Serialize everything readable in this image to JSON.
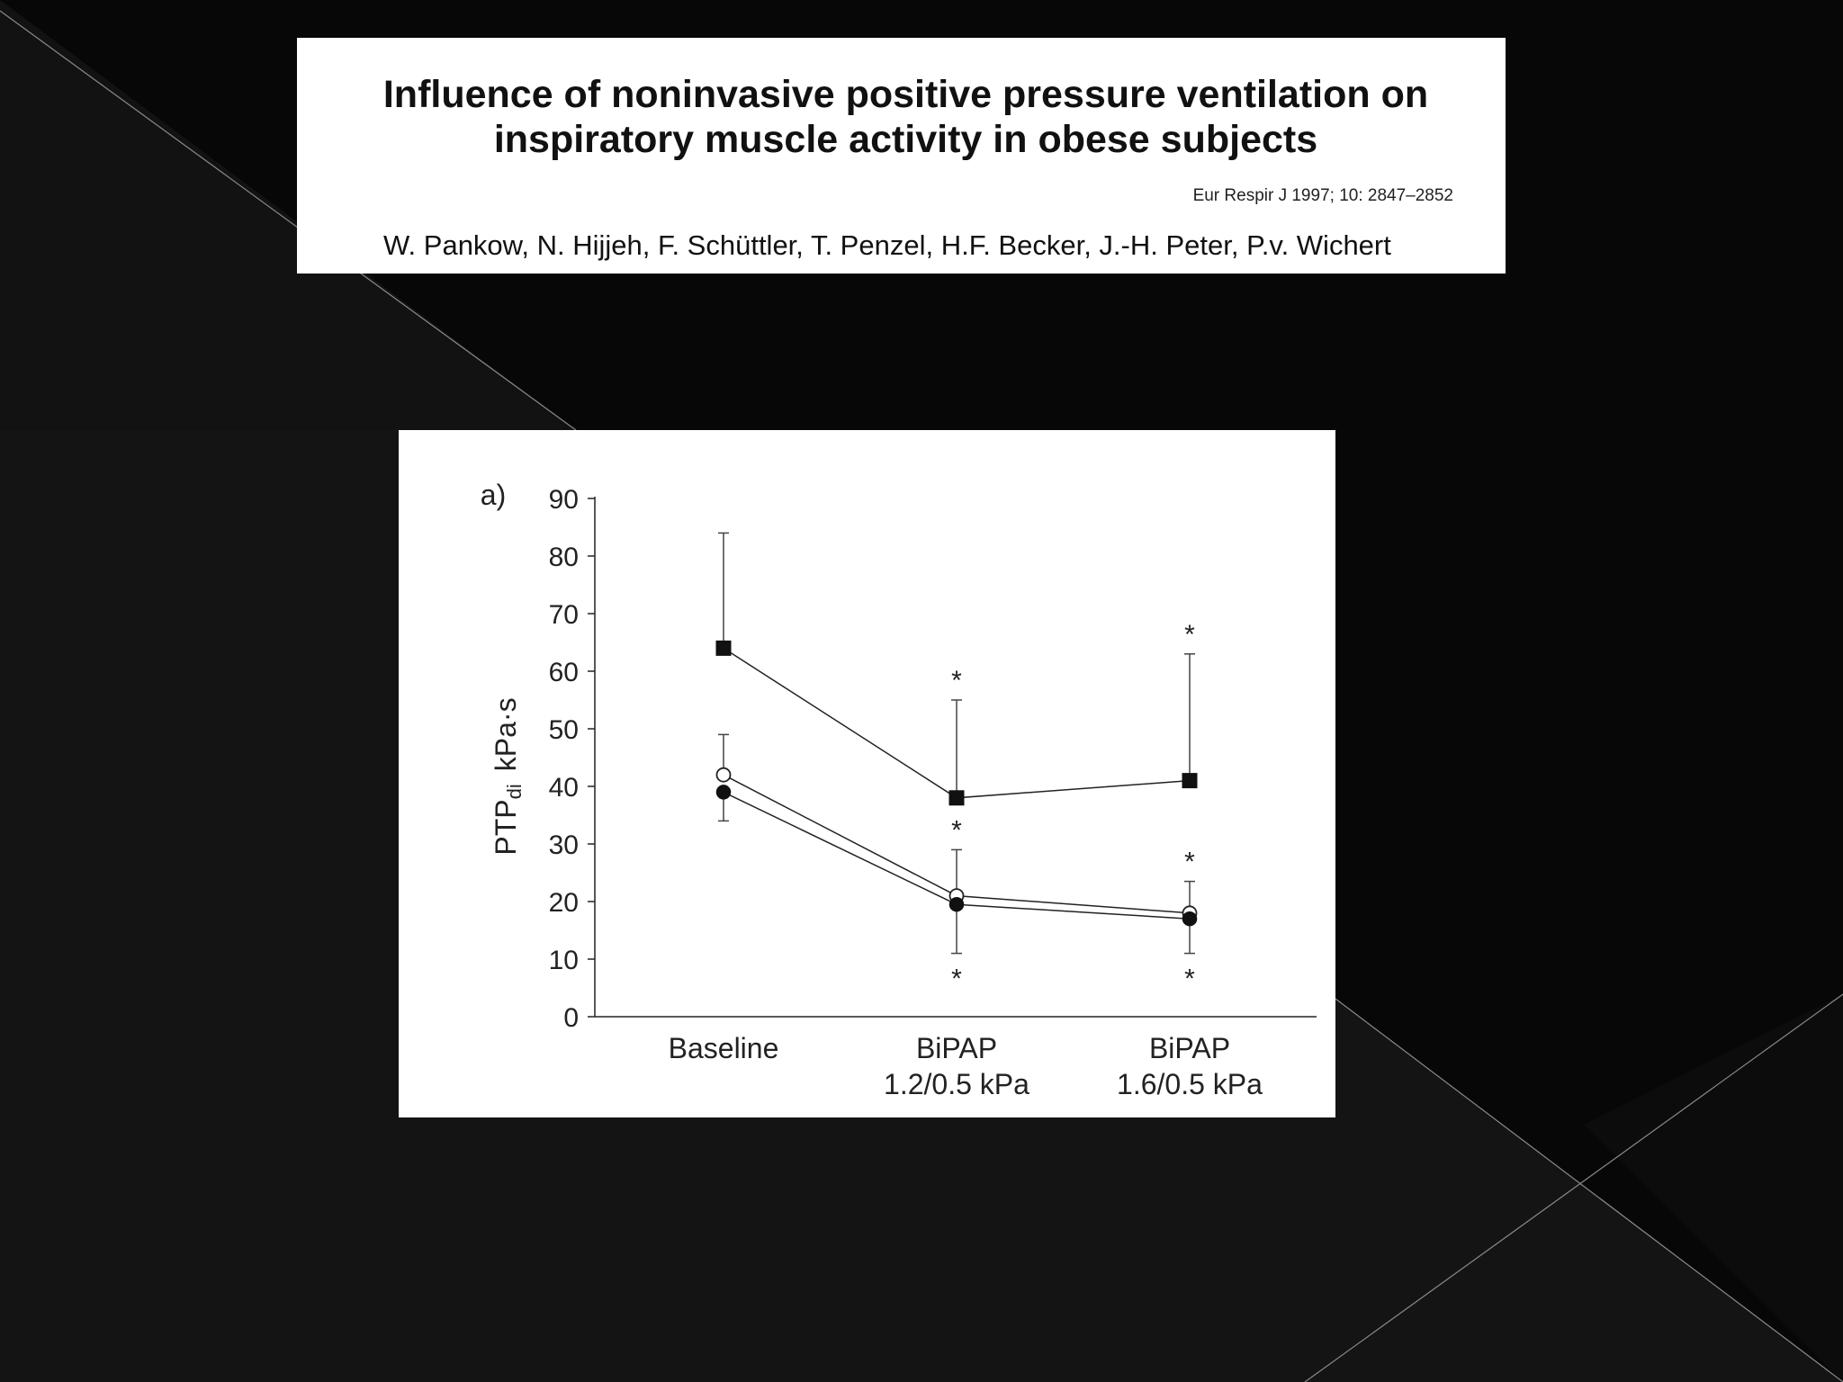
{
  "slide": {
    "background_color": "#070707",
    "line_color": "#8a8a8a"
  },
  "header": {
    "title": "Influence of noninvasive positive pressure ventilation on\ninspiratory muscle activity in obese subjects",
    "citation": "Eur Respir J 1997; 10: 2847–2852",
    "authors": "W. Pankow, N. Hijjeh, F. Schüttler, T. Penzel, H.F. Becker, J.-H. Peter, P.v. Wichert"
  },
  "chart_data": {
    "type": "line",
    "panel_label": "a)",
    "ylabel": "PTP",
    "ylabel_sub": "di",
    "ylabel_unit": "kPa·s",
    "ylim": [
      0,
      90
    ],
    "yticks": [
      0,
      10,
      20,
      30,
      40,
      50,
      60,
      70,
      80,
      90
    ],
    "categories": [
      "Baseline",
      "BiPAP\n1.2/0.5 kPa",
      "BiPAP\n1.6/0.5 kPa"
    ],
    "series": [
      {
        "marker": "filled-square",
        "values": [
          64,
          38,
          41
        ],
        "error_upper": [
          84,
          55,
          63
        ],
        "error_lower": [
          null,
          null,
          null
        ],
        "significance": [
          null,
          "*",
          "*"
        ]
      },
      {
        "marker": "open-circle",
        "values": [
          42,
          21,
          18
        ],
        "error_upper": [
          49,
          29,
          23.5
        ],
        "error_lower": [
          null,
          null,
          null
        ],
        "significance": [
          null,
          "*",
          "*"
        ]
      },
      {
        "marker": "filled-circle",
        "values": [
          39,
          19.5,
          17
        ],
        "error_upper": [
          null,
          null,
          null
        ],
        "error_lower": [
          34,
          11,
          11
        ],
        "significance": [
          null,
          "*",
          "*"
        ]
      }
    ],
    "grid": false,
    "legend": "none"
  }
}
